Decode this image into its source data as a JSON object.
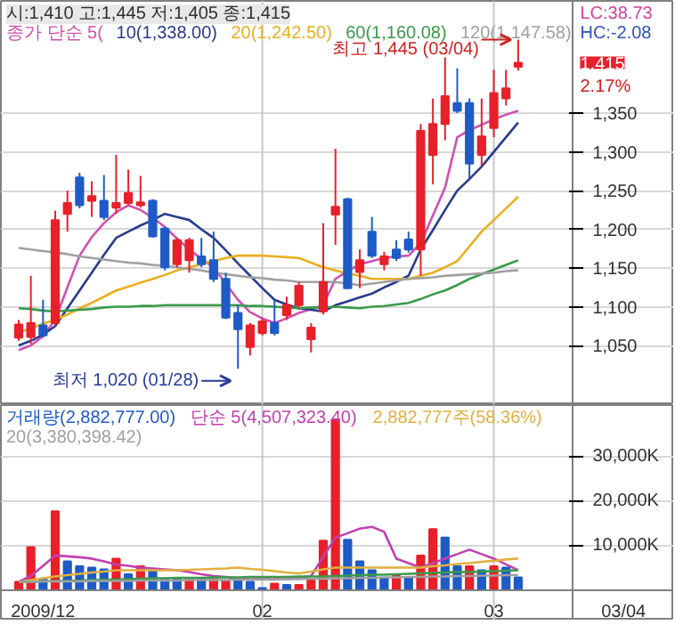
{
  "chart_data": [
    {
      "type": "candlestick",
      "title": "시:1,410 고:1,445 저:1,405 종:1,415",
      "categories": [
        null,
        null,
        "2009/12",
        null,
        null,
        null,
        null,
        null,
        null,
        null,
        null,
        null,
        null,
        null,
        null,
        null,
        null,
        null,
        null,
        null,
        "02",
        null,
        null,
        null,
        null,
        null,
        null,
        null,
        null,
        null,
        null,
        null,
        null,
        null,
        null,
        null,
        null,
        null,
        null,
        "03",
        null,
        null
      ],
      "ohlc": [
        [
          1060,
          1083,
          1056,
          1077
        ],
        [
          1061,
          1140,
          1052,
          1079
        ],
        [
          1076,
          1109,
          1060,
          1063
        ],
        [
          1079,
          1224,
          1075,
          1212
        ],
        [
          1220,
          1250,
          1197,
          1234
        ],
        [
          1267,
          1273,
          1227,
          1231
        ],
        [
          1237,
          1262,
          1216,
          1243
        ],
        [
          1237,
          1270,
          1212,
          1216
        ],
        [
          1228,
          1296,
          1220,
          1234
        ],
        [
          1234,
          1277,
          1231,
          1247
        ],
        [
          1231,
          1269,
          1228,
          1235
        ],
        [
          1237,
          1239,
          1189,
          1191
        ],
        [
          1201,
          1203,
          1147,
          1151
        ],
        [
          1155,
          1189,
          1151,
          1186
        ],
        [
          1160,
          1189,
          1144,
          1186
        ],
        [
          1165,
          1189,
          1151,
          1155
        ],
        [
          1160,
          1197,
          1132,
          1136
        ],
        [
          1136,
          1144,
          1084,
          1086
        ],
        [
          1092,
          1102,
          1020,
          1071
        ],
        [
          1048,
          1079,
          1037,
          1076
        ],
        [
          1066,
          1086,
          1063,
          1081
        ],
        [
          1079,
          1109,
          1063,
          1066
        ],
        [
          1089,
          1113,
          1083,
          1102
        ],
        [
          1102,
          1132,
          1098,
          1127
        ],
        [
          1058,
          1079,
          1041,
          1073
        ],
        [
          1094,
          1208,
          1090,
          1132
        ],
        [
          1219,
          1304,
          1180,
          1229
        ],
        [
          1239,
          1241,
          1124,
          1124
        ],
        [
          1145,
          1174,
          1124,
          1160
        ],
        [
          1197,
          1216,
          1163,
          1166
        ],
        [
          1155,
          1171,
          1147,
          1165
        ],
        [
          1174,
          1186,
          1159,
          1163
        ],
        [
          1187,
          1197,
          1170,
          1174
        ],
        [
          1174,
          1336,
          1140,
          1327
        ],
        [
          1296,
          1369,
          1258,
          1336
        ],
        [
          1336,
          1422,
          1315,
          1372
        ],
        [
          1363,
          1408,
          1350,
          1353
        ],
        [
          1363,
          1369,
          1266,
          1285
        ],
        [
          1296,
          1369,
          1282,
          1320
        ],
        [
          1331,
          1406,
          1319,
          1376
        ],
        [
          1369,
          1406,
          1360,
          1382
        ],
        [
          1410,
          1445,
          1405,
          1415
        ]
      ],
      "colors": [
        "#e8202a",
        "#e8202a",
        "#1e5bc6",
        "#e8202a",
        "#e8202a",
        "#1e5bc6",
        "#e8202a",
        "#1e5bc6",
        "#e8202a",
        "#e8202a",
        "#e8202a",
        "#1e5bc6",
        "#1e5bc6",
        "#e8202a",
        "#e8202a",
        "#1e5bc6",
        "#1e5bc6",
        "#1e5bc6",
        "#1e5bc6",
        "#e8202a",
        "#e8202a",
        "#1e5bc6",
        "#e8202a",
        "#e8202a",
        "#e8202a",
        "#e8202a",
        "#e8202a",
        "#1e5bc6",
        "#e8202a",
        "#1e5bc6",
        "#e8202a",
        "#1e5bc6",
        "#1e5bc6",
        "#e8202a",
        "#e8202a",
        "#e8202a",
        "#1e5bc6",
        "#1e5bc6",
        "#e8202a",
        "#e8202a",
        "#e8202a",
        "#e8202a"
      ],
      "series": [
        {
          "type": "line",
          "name": "종가 단순 5(",
          "color": "#d050b0",
          "values": [
            1044,
            1050,
            1062,
            1083,
            1125,
            1166,
            1190,
            1208,
            1222,
            1231,
            1225,
            1215,
            1203,
            1188,
            1174,
            1162,
            1151,
            1130,
            1109,
            1093,
            1085,
            1079,
            1085,
            1092,
            1097,
            1102,
            1136,
            1146,
            1155,
            1159,
            1163,
            1165,
            1166,
            1182,
            1218,
            1254,
            1319,
            1328,
            1335,
            1342,
            1348,
            1353
          ]
        },
        {
          "type": "line",
          "name": "10(1,338.00)",
          "color": "#283c8c",
          "values": [
            1050,
            1056,
            1064,
            1075,
            1098,
            1121,
            1144,
            1167,
            1189,
            1197,
            1205,
            1212,
            1220,
            1216,
            1212,
            1200,
            1189,
            1173,
            1156,
            1140,
            1124,
            1109,
            1103,
            1098,
            1096,
            1094,
            1102,
            1107,
            1112,
            1117,
            1125,
            1132,
            1140,
            1174,
            1199,
            1225,
            1250,
            1265,
            1281,
            1300,
            1319,
            1338
          ]
        },
        {
          "type": "line",
          "name": "20(1,242.50)",
          "color": "#e8b020",
          "values": [
            1067,
            1072,
            1078,
            1083,
            1090,
            1098,
            1105,
            1113,
            1121,
            1126,
            1131,
            1136,
            1141,
            1147,
            1151,
            1155,
            1159,
            1163,
            1166,
            1166,
            1166,
            1165,
            1164,
            1163,
            1157,
            1151,
            1147,
            1143,
            1140,
            1136,
            1136,
            1136,
            1136,
            1140,
            1144,
            1151,
            1159,
            1178,
            1197,
            1212,
            1227,
            1242
          ]
        },
        {
          "type": "line",
          "name": "60(1,160.08)",
          "color": "#3a9a4a",
          "values": [
            1098,
            1097,
            1095,
            1094,
            1095,
            1096,
            1097,
            1099,
            1100,
            1100,
            1101,
            1101,
            1102,
            1102,
            1102,
            1102,
            1102,
            1102,
            1102,
            1101,
            1101,
            1100,
            1099,
            1098,
            1099,
            1099,
            1100,
            1099,
            1098,
            1100,
            1101,
            1103,
            1105,
            1110,
            1116,
            1121,
            1128,
            1136,
            1142,
            1148,
            1154,
            1160
          ]
        },
        {
          "type": "line",
          "name": "120(1,147.58)",
          "color": "#a0a0a0",
          "values": [
            1176,
            1174,
            1172,
            1170,
            1168,
            1165,
            1163,
            1161,
            1159,
            1157,
            1156,
            1154,
            1153,
            1151,
            1149,
            1147,
            1144,
            1142,
            1140,
            1138,
            1137,
            1135,
            1134,
            1132,
            1132,
            1132,
            1132,
            1130,
            1128,
            1130,
            1132,
            1134,
            1136,
            1137,
            1138,
            1140,
            1141,
            1142,
            1143,
            1144,
            1146,
            1147
          ]
        }
      ],
      "ylim": [
        973,
        1495
      ],
      "yticks": [
        {
          "value": 1050,
          "label": "1,050"
        },
        {
          "value": 1100,
          "label": "1,100"
        },
        {
          "value": 1150,
          "label": "1,150"
        },
        {
          "value": 1200,
          "label": "1,200"
        },
        {
          "value": 1250,
          "label": "1,250"
        },
        {
          "value": 1300,
          "label": "1,300"
        },
        {
          "value": 1350,
          "label": "1,350"
        }
      ],
      "tick_labels": "y",
      "grid": "y",
      "legend": "top left",
      "ref_lines": [
        {
          "axis": "x",
          "value": "02",
          "color": "#c8c8c8"
        },
        {
          "axis": "x",
          "value": "03",
          "color": "#c8c8c8"
        }
      ],
      "annotations": [
        "최고 1,445 (03/04)",
        "최저 1,020 (01/28)",
        "1,415",
        "2.17%",
        "LC:38.73",
        "HC:-2.08"
      ]
    },
    {
      "type": "bar",
      "categories": [
        null,
        null,
        "2009/12",
        null,
        null,
        null,
        null,
        null,
        null,
        null,
        null,
        null,
        null,
        null,
        null,
        null,
        null,
        null,
        null,
        null,
        "02",
        null,
        null,
        null,
        null,
        null,
        null,
        null,
        null,
        null,
        null,
        null,
        null,
        null,
        null,
        null,
        null,
        null,
        null,
        "03",
        null,
        null
      ],
      "series": [
        {
          "type": "bar",
          "name": "거래량(2,882,777.00)",
          "color": "#1e5bc6",
          "values": [
            1900,
            9700,
            2500,
            17700,
            6500,
            5400,
            5100,
            4700,
            7100,
            3600,
            5400,
            4200,
            2500,
            2500,
            2500,
            2500,
            2500,
            2200,
            2500,
            1900,
            500,
            1500,
            1200,
            1200,
            2200,
            11100,
            38300,
            11300,
            6500,
            4500,
            2800,
            3200,
            2800,
            7800,
            13700,
            11800,
            5400,
            5400,
            4500,
            5400,
            5100,
            2900
          ],
          "colors": [
            "#e8202a",
            "#e8202a",
            "#1e5bc6",
            "#e8202a",
            "#1e5bc6",
            "#1e5bc6",
            "#1e5bc6",
            "#1e5bc6",
            "#e8202a",
            "#1e5bc6",
            "#e8202a",
            "#1e5bc6",
            "#1e5bc6",
            "#1e5bc6",
            "#e8202a",
            "#1e5bc6",
            "#e8202a",
            "#e8202a",
            "#1e5bc6",
            "#1e5bc6",
            "#1e5bc6",
            "#e8202a",
            "#1e5bc6",
            "#e8202a",
            "#e8202a",
            "#e8202a",
            "#e8202a",
            "#1e5bc6",
            "#1e5bc6",
            "#1e5bc6",
            "#1e5bc6",
            "#e8202a",
            "#1e5bc6",
            "#e8202a",
            "#e8202a",
            "#1e5bc6",
            "#1e5bc6",
            "#e8202a",
            "#1e5bc6",
            "#e8202a",
            "#1e5bc6",
            "#1e5bc6"
          ]
        },
        {
          "type": "line",
          "name": "단순 5(4,507,323.40)",
          "color": "#c040b0",
          "values": [
            1900,
            3200,
            5500,
            7800,
            7600,
            7400,
            7100,
            6500,
            5800,
            5500,
            5100,
            4900,
            4700,
            4500,
            4100,
            3600,
            3200,
            3000,
            2700,
            2500,
            2500,
            2500,
            2500,
            2800,
            3200,
            7500,
            11800,
            12800,
            13800,
            14200,
            13100,
            7100,
            6100,
            5100,
            6100,
            7100,
            8100,
            9100,
            8100,
            7100,
            5800,
            4500
          ]
        },
        {
          "type": "line",
          "name": "2,882,777주(58.36%)",
          "color": "#e0b040",
          "values": [
            1900,
            2300,
            2700,
            3100,
            3400,
            3700,
            4000,
            4200,
            4500,
            4500,
            4500,
            4500,
            4500,
            4500,
            4600,
            4700,
            4800,
            4900,
            5100,
            4800,
            4600,
            4300,
            4000,
            3800,
            4200,
            4700,
            5100,
            5100,
            5100,
            5100,
            5100,
            5100,
            5100,
            5100,
            5400,
            5600,
            5900,
            6100,
            6400,
            6600,
            6900,
            7100
          ]
        },
        {
          "type": "line",
          "color": "#3a9a4a",
          "values": [
            1900,
            1900,
            2000,
            2100,
            2100,
            2200,
            2300,
            2400,
            2400,
            2500,
            2600,
            2700,
            2700,
            2800,
            2800,
            2800,
            2900,
            2900,
            2900,
            3000,
            3000,
            3000,
            3000,
            3100,
            3100,
            3100,
            3200,
            3300,
            3400,
            3500,
            3500,
            3600,
            3700,
            3800,
            3900,
            4000,
            4100,
            4100,
            4200,
            4300,
            4400,
            4500
          ]
        },
        {
          "type": "line",
          "name": "20(3,380,398.42)",
          "color": "#a0a0a0",
          "values": [
            1900,
            1900,
            2000,
            2000,
            2000,
            2000,
            2100,
            2100,
            2100,
            2100,
            2200,
            2200,
            2200,
            2200,
            2300,
            2300,
            2300,
            2300,
            2400,
            2400,
            2400,
            2400,
            2500,
            2500,
            2600,
            2600,
            2700,
            2700,
            2800,
            2800,
            2900,
            2900,
            3000,
            3000,
            3100,
            3100,
            3200,
            3200,
            3300,
            3300,
            3400,
            3400
          ]
        }
      ],
      "ylim": [
        0,
        41500
      ],
      "yticks": [
        {
          "value": 10000,
          "label": "10,000K"
        },
        {
          "value": 20000,
          "label": "20,000K"
        },
        {
          "value": 30000,
          "label": "30,000K"
        }
      ],
      "grid": "y",
      "legend": "top left",
      "ref_lines": [
        {
          "axis": "x",
          "value": "02",
          "color": "#c8c8c8"
        },
        {
          "axis": "x",
          "value": "03",
          "color": "#c8c8c8"
        }
      ],
      "annotations": [
        "03/04"
      ]
    }
  ]
}
